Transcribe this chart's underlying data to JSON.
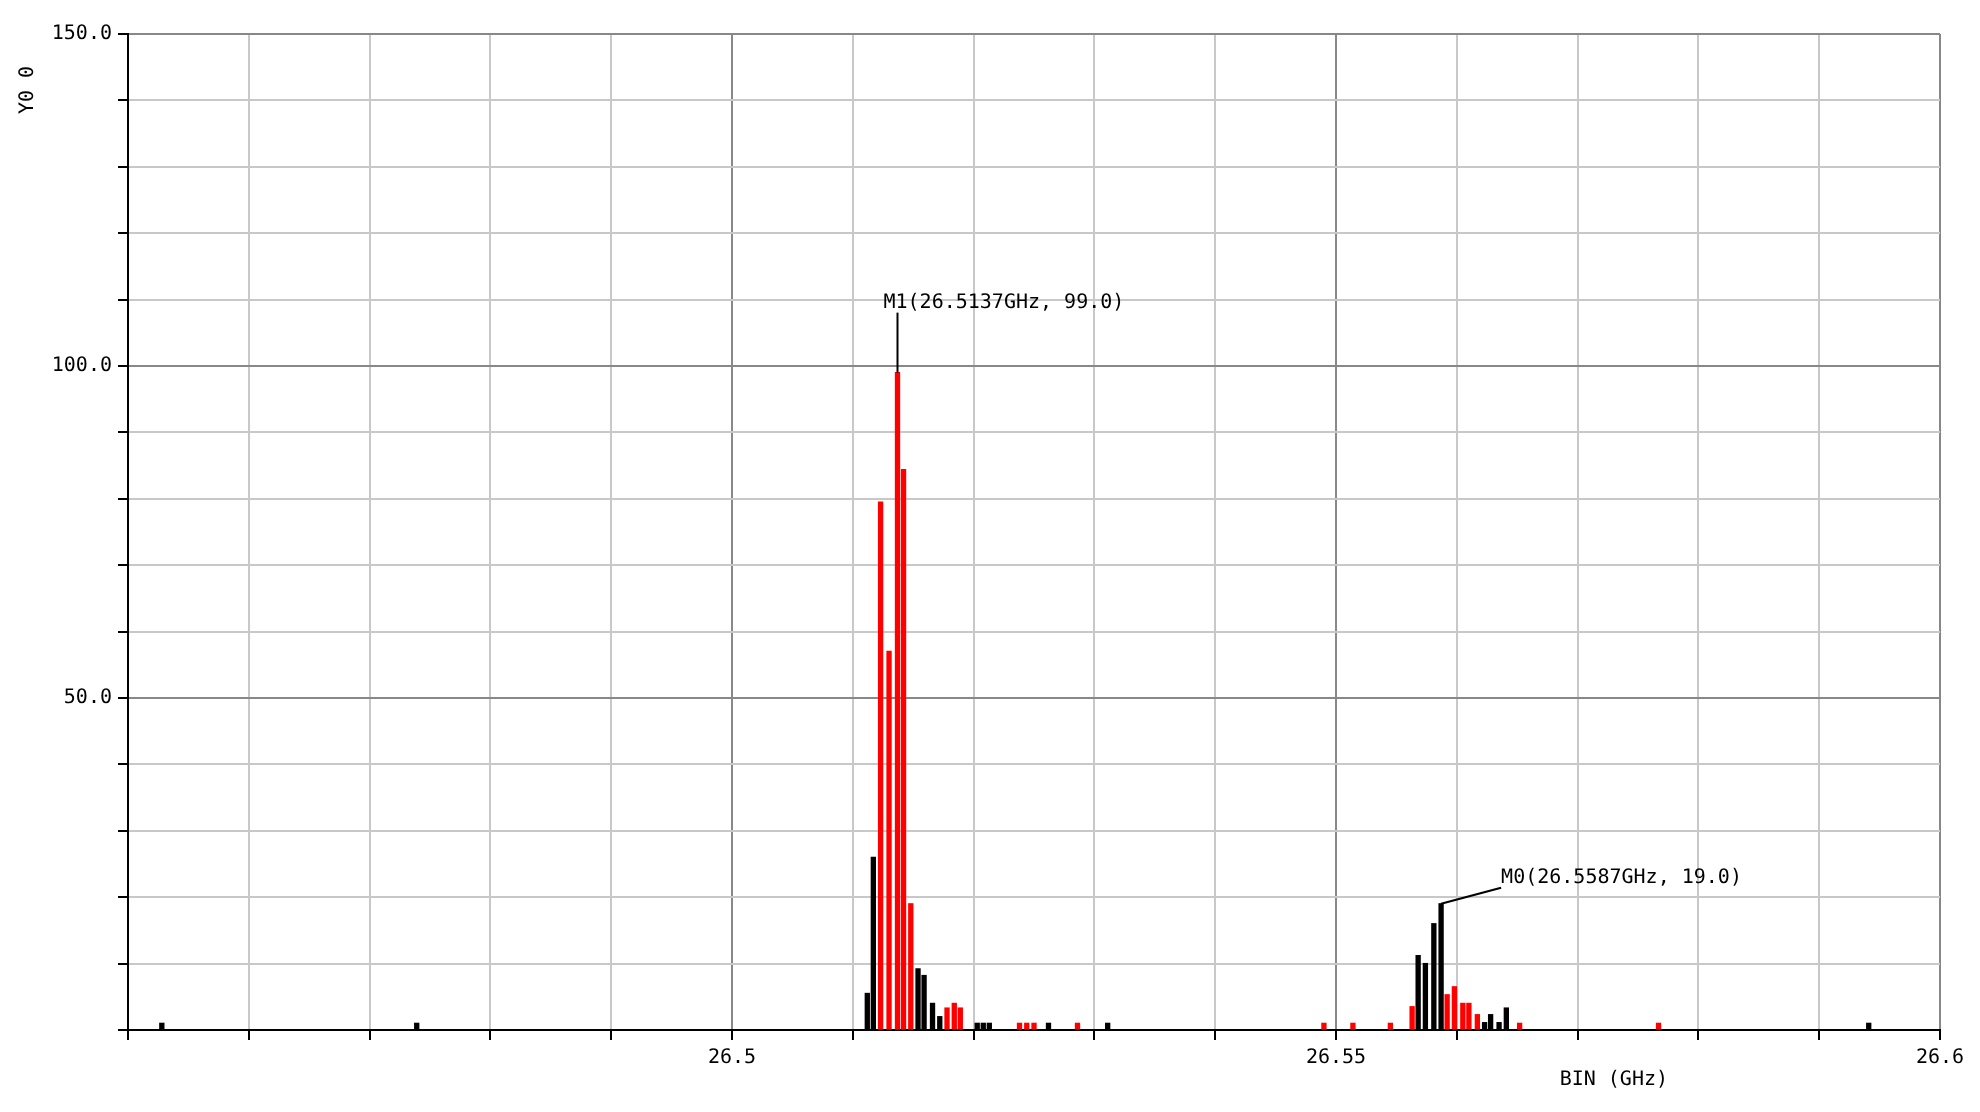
{
  "chart_data": {
    "type": "bar",
    "xlabel": "BIN (GHz)",
    "ylabel": "Y0 0",
    "xlim": [
      26.45,
      26.6
    ],
    "xticks": [
      {
        "value": 26.45,
        "label": null
      },
      {
        "value": 26.46,
        "label": null
      },
      {
        "value": 26.47,
        "label": null
      },
      {
        "value": 26.48,
        "label": null
      },
      {
        "value": 26.49,
        "label": null
      },
      26.5,
      {
        "value": 26.51,
        "label": null
      },
      {
        "value": 26.52,
        "label": null
      },
      {
        "value": 26.53,
        "label": null
      },
      {
        "value": 26.54,
        "label": null
      },
      26.55,
      {
        "value": 26.56,
        "label": null
      },
      {
        "value": 26.57,
        "label": null
      },
      {
        "value": 26.58,
        "label": null
      },
      {
        "value": 26.59,
        "label": null
      },
      26.6
    ],
    "ylim": [
      0,
      150
    ],
    "yticks": [
      {
        "value": 0,
        "label": null
      },
      {
        "value": 10,
        "label": null
      },
      {
        "value": 20,
        "label": null
      },
      {
        "value": 30,
        "label": null
      },
      {
        "value": 40,
        "label": null
      },
      {
        "value": 50,
        "label": "50.0"
      },
      {
        "value": 60,
        "label": null
      },
      {
        "value": 70,
        "label": null
      },
      {
        "value": 80,
        "label": null
      },
      {
        "value": 90,
        "label": null
      },
      {
        "value": 100,
        "label": "100.0"
      },
      {
        "value": 110,
        "label": null
      },
      {
        "value": 120,
        "label": null
      },
      {
        "value": 130,
        "label": null
      },
      {
        "value": 140,
        "label": null
      },
      {
        "value": 150,
        "label": "150.0"
      }
    ],
    "grid": true,
    "legend": false,
    "series": [
      {
        "color": "#000000",
        "x": [
          26.4528,
          26.4739,
          26.5112,
          26.5117,
          26.5154,
          26.5159,
          26.5166,
          26.5172,
          26.5203,
          26.5208,
          26.5213,
          26.5262,
          26.5311,
          26.5568,
          26.5574,
          26.5581,
          26.5587,
          26.5623,
          26.5628,
          26.5635,
          26.5641,
          26.5941
        ],
        "values": [
          1,
          1,
          5.5,
          26,
          9.2,
          8.2,
          4,
          2,
          1,
          1,
          1,
          1,
          1,
          11.2,
          10,
          16,
          19,
          1.1,
          2.3,
          1.1,
          3.3,
          1
        ]
      },
      {
        "color": "#ff0000",
        "x": [
          26.5123,
          26.513,
          26.5137,
          26.5142,
          26.5148,
          26.5178,
          26.5184,
          26.5189,
          26.5238,
          26.5244,
          26.525,
          26.5286,
          26.549,
          26.5514,
          26.5545,
          26.5563,
          26.5592,
          26.5598,
          26.5605,
          26.561,
          26.5617,
          26.5652,
          26.5767
        ],
        "values": [
          79.5,
          57,
          99,
          84.4,
          19,
          3.3,
          4,
          3.3,
          1,
          1,
          1,
          1,
          1,
          1,
          1,
          3.5,
          5.3,
          6.5,
          4,
          4,
          2.3,
          1,
          1
        ]
      }
    ],
    "annotations": [
      {
        "text": "M1(26.5137GHz, 99.0)",
        "x": 26.5137,
        "y": 99
      },
      {
        "text": "M0(26.5587GHz, 19.0)",
        "x": 26.5587,
        "y": 19
      }
    ]
  }
}
